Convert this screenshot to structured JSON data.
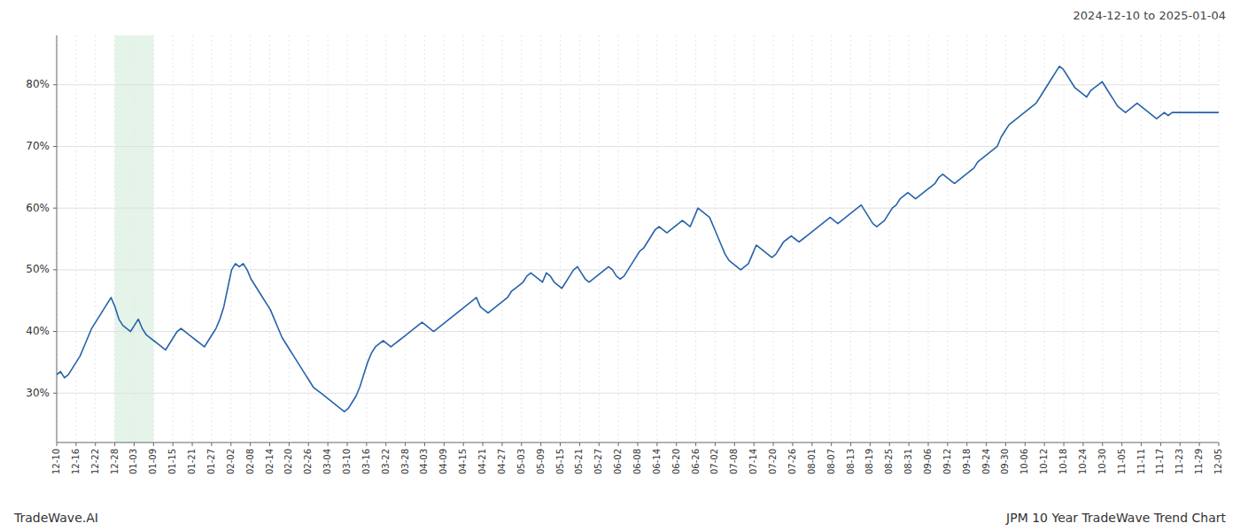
{
  "chart_data": {
    "type": "line",
    "subtitle": "2024-12-10 to 2025-01-04",
    "annotations": [
      "TradeWave.AI",
      "JPM 10 Year TradeWave Trend Chart"
    ],
    "color": "#2563a8",
    "grid": true,
    "shaded_region": {
      "x_start": 3,
      "x_end": 5,
      "color": "#d4edda"
    },
    "xlim": [
      0,
      60
    ],
    "xticks": [
      {
        "value": 0,
        "label": "12-10"
      },
      {
        "value": 1,
        "label": "12-16"
      },
      {
        "value": 2,
        "label": "12-22"
      },
      {
        "value": 3,
        "label": "12-28"
      },
      {
        "value": 4,
        "label": "01-03"
      },
      {
        "value": 5,
        "label": "01-09"
      },
      {
        "value": 6,
        "label": "01-15"
      },
      {
        "value": 7,
        "label": "01-21"
      },
      {
        "value": 8,
        "label": "01-27"
      },
      {
        "value": 9,
        "label": "02-02"
      },
      {
        "value": 10,
        "label": "02-08"
      },
      {
        "value": 11,
        "label": "02-14"
      },
      {
        "value": 12,
        "label": "02-20"
      },
      {
        "value": 13,
        "label": "02-26"
      },
      {
        "value": 14,
        "label": "03-04"
      },
      {
        "value": 15,
        "label": "03-10"
      },
      {
        "value": 16,
        "label": "03-16"
      },
      {
        "value": 17,
        "label": "03-22"
      },
      {
        "value": 18,
        "label": "03-28"
      },
      {
        "value": 19,
        "label": "04-03"
      },
      {
        "value": 20,
        "label": "04-09"
      },
      {
        "value": 21,
        "label": "04-15"
      },
      {
        "value": 22,
        "label": "04-21"
      },
      {
        "value": 23,
        "label": "04-27"
      },
      {
        "value": 24,
        "label": "05-03"
      },
      {
        "value": 25,
        "label": "05-09"
      },
      {
        "value": 26,
        "label": "05-15"
      },
      {
        "value": 27,
        "label": "05-21"
      },
      {
        "value": 28,
        "label": "05-27"
      },
      {
        "value": 29,
        "label": "06-02"
      },
      {
        "value": 30,
        "label": "06-08"
      },
      {
        "value": 31,
        "label": "06-14"
      },
      {
        "value": 32,
        "label": "06-20"
      },
      {
        "value": 33,
        "label": "06-26"
      },
      {
        "value": 34,
        "label": "07-02"
      },
      {
        "value": 35,
        "label": "07-08"
      },
      {
        "value": 36,
        "label": "07-14"
      },
      {
        "value": 37,
        "label": "07-20"
      },
      {
        "value": 38,
        "label": "07-26"
      },
      {
        "value": 39,
        "label": "08-01"
      },
      {
        "value": 40,
        "label": "08-07"
      },
      {
        "value": 41,
        "label": "08-13"
      },
      {
        "value": 42,
        "label": "08-19"
      },
      {
        "value": 43,
        "label": "08-25"
      },
      {
        "value": 44,
        "label": "08-31"
      },
      {
        "value": 45,
        "label": "09-06"
      },
      {
        "value": 46,
        "label": "09-12"
      },
      {
        "value": 47,
        "label": "09-18"
      },
      {
        "value": 48,
        "label": "09-24"
      },
      {
        "value": 49,
        "label": "09-30"
      },
      {
        "value": 50,
        "label": "10-06"
      },
      {
        "value": 51,
        "label": "10-12"
      },
      {
        "value": 52,
        "label": "10-18"
      },
      {
        "value": 53,
        "label": "10-24"
      },
      {
        "value": 54,
        "label": "10-30"
      },
      {
        "value": 55,
        "label": "11-05"
      },
      {
        "value": 56,
        "label": "11-11"
      },
      {
        "value": 57,
        "label": "11-17"
      },
      {
        "value": 58,
        "label": "11-23"
      },
      {
        "value": 59,
        "label": "11-29"
      },
      {
        "value": 60,
        "label": "12-05"
      }
    ],
    "ylim": [
      22,
      88
    ],
    "yticks": [
      {
        "value": 30,
        "label": "30%"
      },
      {
        "value": 40,
        "label": "40%"
      },
      {
        "value": 50,
        "label": "50%"
      },
      {
        "value": 60,
        "label": "60%"
      },
      {
        "value": 70,
        "label": "70%"
      },
      {
        "value": 80,
        "label": "80%"
      }
    ],
    "values": [
      33.0,
      33.5,
      32.5,
      33.0,
      34.0,
      35.0,
      36.0,
      37.5,
      39.0,
      40.5,
      41.5,
      42.5,
      43.5,
      44.5,
      45.5,
      44.0,
      42.0,
      41.0,
      40.5,
      40.0,
      41.0,
      42.0,
      40.5,
      39.5,
      39.0,
      38.5,
      38.0,
      37.5,
      37.0,
      38.0,
      39.0,
      40.0,
      40.5,
      40.0,
      39.5,
      39.0,
      38.5,
      38.0,
      37.5,
      38.5,
      39.5,
      40.5,
      42.0,
      44.0,
      47.0,
      50.0,
      51.0,
      50.5,
      51.0,
      50.0,
      48.5,
      47.5,
      46.5,
      45.5,
      44.5,
      43.5,
      42.0,
      40.5,
      39.0,
      38.0,
      37.0,
      36.0,
      35.0,
      34.0,
      33.0,
      32.0,
      31.0,
      30.5,
      30.0,
      29.5,
      29.0,
      28.5,
      28.0,
      27.5,
      27.0,
      27.5,
      28.5,
      29.5,
      31.0,
      33.0,
      35.0,
      36.5,
      37.5,
      38.0,
      38.5,
      38.0,
      37.5,
      38.0,
      38.5,
      39.0,
      39.5,
      40.0,
      40.5,
      41.0,
      41.5,
      41.0,
      40.5,
      40.0,
      40.5,
      41.0,
      41.5,
      42.0,
      42.5,
      43.0,
      43.5,
      44.0,
      44.5,
      45.0,
      45.5,
      44.0,
      43.5,
      43.0,
      43.5,
      44.0,
      44.5,
      45.0,
      45.5,
      46.5,
      47.0,
      47.5,
      48.0,
      49.0,
      49.5,
      49.0,
      48.5,
      48.0,
      49.5,
      49.0,
      48.0,
      47.5,
      47.0,
      48.0,
      49.0,
      50.0,
      50.5,
      49.5,
      48.5,
      48.0,
      48.5,
      49.0,
      49.5,
      50.0,
      50.5,
      50.0,
      49.0,
      48.5,
      49.0,
      50.0,
      51.0,
      52.0,
      53.0,
      53.5,
      54.5,
      55.5,
      56.5,
      57.0,
      56.5,
      56.0,
      56.5,
      57.0,
      57.5,
      58.0,
      57.5,
      57.0,
      58.5,
      60.0,
      59.5,
      59.0,
      58.5,
      57.0,
      55.5,
      54.0,
      52.5,
      51.5,
      51.0,
      50.5,
      50.0,
      50.5,
      51.0,
      52.5,
      54.0,
      53.5,
      53.0,
      52.5,
      52.0,
      52.5,
      53.5,
      54.5,
      55.0,
      55.5,
      55.0,
      54.5,
      55.0,
      55.5,
      56.0,
      56.5,
      57.0,
      57.5,
      58.0,
      58.5,
      58.0,
      57.5,
      58.0,
      58.5,
      59.0,
      59.5,
      60.0,
      60.5,
      59.5,
      58.5,
      57.5,
      57.0,
      57.5,
      58.0,
      59.0,
      60.0,
      60.5,
      61.5,
      62.0,
      62.5,
      62.0,
      61.5,
      62.0,
      62.5,
      63.0,
      63.5,
      64.0,
      65.0,
      65.5,
      65.0,
      64.5,
      64.0,
      64.5,
      65.0,
      65.5,
      66.0,
      66.5,
      67.5,
      68.0,
      68.5,
      69.0,
      69.5,
      70.0,
      71.5,
      72.5,
      73.5,
      74.0,
      74.5,
      75.0,
      75.5,
      76.0,
      76.5,
      77.0,
      78.0,
      79.0,
      80.0,
      81.0,
      82.0,
      83.0,
      82.5,
      81.5,
      80.5,
      79.5,
      79.0,
      78.5,
      78.0,
      79.0,
      79.5,
      80.0,
      80.5,
      79.5,
      78.5,
      77.5,
      76.5,
      76.0,
      75.5,
      76.0,
      76.5,
      77.0,
      76.5,
      76.0,
      75.5,
      75.0,
      74.5,
      75.0,
      75.5,
      75.0,
      75.5,
      75.5,
      75.5,
      75.5,
      75.5,
      75.5,
      75.5,
      75.5,
      75.5,
      75.5,
      75.5,
      75.5,
      75.5
    ]
  }
}
